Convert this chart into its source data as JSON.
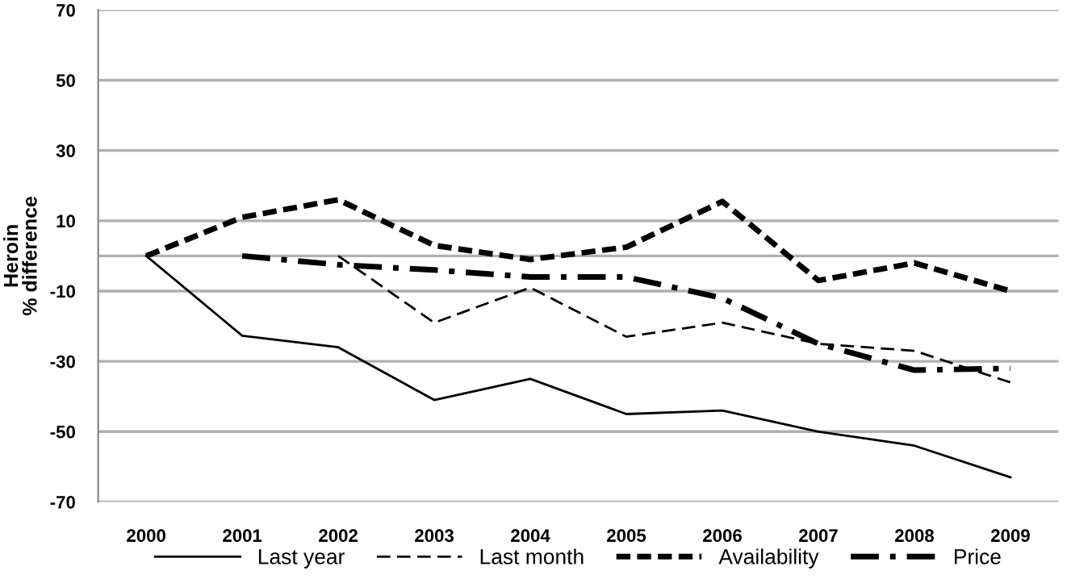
{
  "chart_data": {
    "type": "line",
    "ylabel": "Heroin\n% difference",
    "categories": [
      "2000",
      "2001",
      "2002",
      "2003",
      "2004",
      "2005",
      "2006",
      "2007",
      "2008",
      "2009"
    ],
    "series": [
      {
        "name": "Last year",
        "color": "#000000",
        "line_style": "solid",
        "values": [
          0,
          -22.7,
          -26,
          -41,
          -35,
          -45,
          -44,
          -50,
          -54,
          -63
        ]
      },
      {
        "name": "Last month",
        "color": "#000000",
        "line_style": "dashed",
        "values": [
          null,
          null,
          0,
          -19,
          -9,
          -23,
          -19,
          -25,
          -27,
          -36
        ]
      },
      {
        "name": "Availability",
        "color": "#000000",
        "line_style": "dotted",
        "values": [
          0,
          11,
          16,
          3,
          -1,
          2.5,
          15.5,
          -7,
          -2,
          -10
        ]
      },
      {
        "name": "Price",
        "color": "#000000",
        "line_style": "dashdot",
        "values": [
          null,
          0,
          -2.5,
          -4,
          -6,
          -6,
          -12,
          -25,
          -32.5,
          -32
        ]
      }
    ],
    "ylim": [
      -70,
      70
    ],
    "yticks": [
      -70,
      -50,
      -30,
      -10,
      {
        "value": 0,
        "label": null
      },
      10,
      30,
      50,
      70
    ],
    "grid": "y",
    "legend": "bottom"
  }
}
